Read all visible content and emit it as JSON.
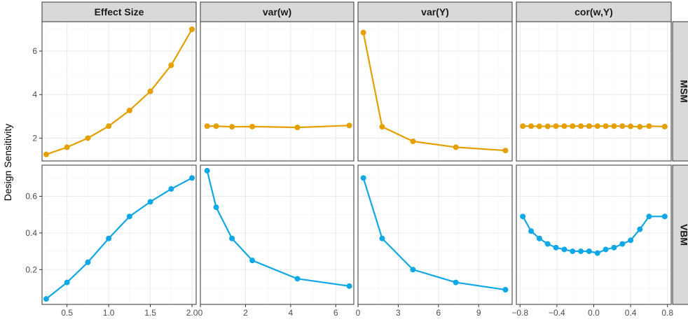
{
  "ylabel": "Design Sensitivity",
  "columns": [
    "Effect Size",
    "var(w)",
    "var(Y)",
    "cor(w,Y)"
  ],
  "rows": [
    "MSM",
    "VBM"
  ],
  "colors": {
    "MSM": "#E69F00",
    "VBM": "#0FA8E6",
    "strip_bg": "#D9D9D9",
    "grid_major": "#EBEBEB",
    "grid_minor": "#F5F5F5",
    "border": "#333333"
  },
  "chart_data": {
    "type": "line",
    "facet_layout": "2 rows x 4 columns, free scales",
    "x_axes": [
      {
        "lim": [
          0.2,
          2.05
        ],
        "ticks": [
          0.5,
          1.0,
          1.5,
          2.0
        ],
        "tick_labels": [
          "0.5",
          "1.0",
          "1.5",
          "2.0"
        ]
      },
      {
        "lim": [
          0.0,
          6.8
        ],
        "ticks": [
          0,
          2,
          4,
          6
        ],
        "tick_labels": [
          "0",
          "2",
          "4",
          "6"
        ]
      },
      {
        "lim": [
          0.0,
          11.5
        ],
        "ticks": [
          0,
          3,
          6,
          9
        ],
        "tick_labels": [
          "0",
          "3",
          "6",
          "9"
        ]
      },
      {
        "lim": [
          -0.84,
          0.84
        ],
        "ticks": [
          -0.8,
          -0.4,
          0.0,
          0.4,
          0.8
        ],
        "tick_labels": [
          "−0.8",
          "−0.4",
          "0.0",
          "0.4",
          "0.8"
        ]
      }
    ],
    "y_axes": [
      {
        "row": "MSM",
        "lim": [
          0.95,
          7.35
        ],
        "ticks": [
          2,
          4,
          6
        ],
        "tick_labels": [
          "2",
          "4",
          "6"
        ]
      },
      {
        "row": "VBM",
        "lim": [
          0.01,
          0.77
        ],
        "ticks": [
          0.2,
          0.4,
          0.6
        ],
        "tick_labels": [
          "0.2",
          "0.4",
          "0.6"
        ]
      }
    ],
    "panels": [
      {
        "row": "MSM",
        "col": "Effect Size",
        "x": [
          0.25,
          0.5,
          0.75,
          1.0,
          1.25,
          1.5,
          1.75,
          2.0
        ],
        "y": [
          1.25,
          1.58,
          2.0,
          2.55,
          3.27,
          4.15,
          5.35,
          7.0
        ]
      },
      {
        "row": "MSM",
        "col": "var(w)",
        "x": [
          0.3,
          0.7,
          1.4,
          2.3,
          4.3,
          6.6
        ],
        "y": [
          2.55,
          2.55,
          2.52,
          2.53,
          2.49,
          2.58
        ]
      },
      {
        "row": "MSM",
        "col": "var(Y)",
        "x": [
          0.4,
          1.8,
          4.1,
          7.3,
          11.0
        ],
        "y": [
          6.85,
          2.52,
          1.85,
          1.58,
          1.43
        ]
      },
      {
        "row": "MSM",
        "col": "cor(w,Y)",
        "x": [
          -0.77,
          -0.68,
          -0.59,
          -0.5,
          -0.41,
          -0.32,
          -0.23,
          -0.14,
          -0.05,
          0.04,
          0.13,
          0.22,
          0.31,
          0.4,
          0.5,
          0.6,
          0.77
        ],
        "y": [
          2.55,
          2.55,
          2.54,
          2.54,
          2.55,
          2.55,
          2.55,
          2.55,
          2.55,
          2.55,
          2.55,
          2.55,
          2.55,
          2.54,
          2.52,
          2.55,
          2.53
        ]
      },
      {
        "row": "VBM",
        "col": "Effect Size",
        "x": [
          0.25,
          0.5,
          0.75,
          1.0,
          1.25,
          1.5,
          1.75,
          2.0
        ],
        "y": [
          0.04,
          0.13,
          0.24,
          0.37,
          0.49,
          0.57,
          0.64,
          0.7
        ]
      },
      {
        "row": "VBM",
        "col": "var(w)",
        "x": [
          0.3,
          0.7,
          1.4,
          2.3,
          4.3,
          6.6
        ],
        "y": [
          0.74,
          0.54,
          0.37,
          0.25,
          0.15,
          0.11
        ]
      },
      {
        "row": "VBM",
        "col": "var(Y)",
        "x": [
          0.4,
          1.8,
          4.1,
          7.3,
          11.0
        ],
        "y": [
          0.7,
          0.37,
          0.2,
          0.13,
          0.09
        ]
      },
      {
        "row": "VBM",
        "col": "cor(w,Y)",
        "x": [
          -0.77,
          -0.68,
          -0.59,
          -0.5,
          -0.41,
          -0.32,
          -0.23,
          -0.14,
          -0.05,
          0.04,
          0.13,
          0.22,
          0.31,
          0.4,
          0.5,
          0.6,
          0.77
        ],
        "y": [
          0.49,
          0.41,
          0.37,
          0.34,
          0.32,
          0.31,
          0.3,
          0.3,
          0.3,
          0.29,
          0.31,
          0.32,
          0.34,
          0.36,
          0.42,
          0.49,
          0.49
        ]
      }
    ]
  }
}
